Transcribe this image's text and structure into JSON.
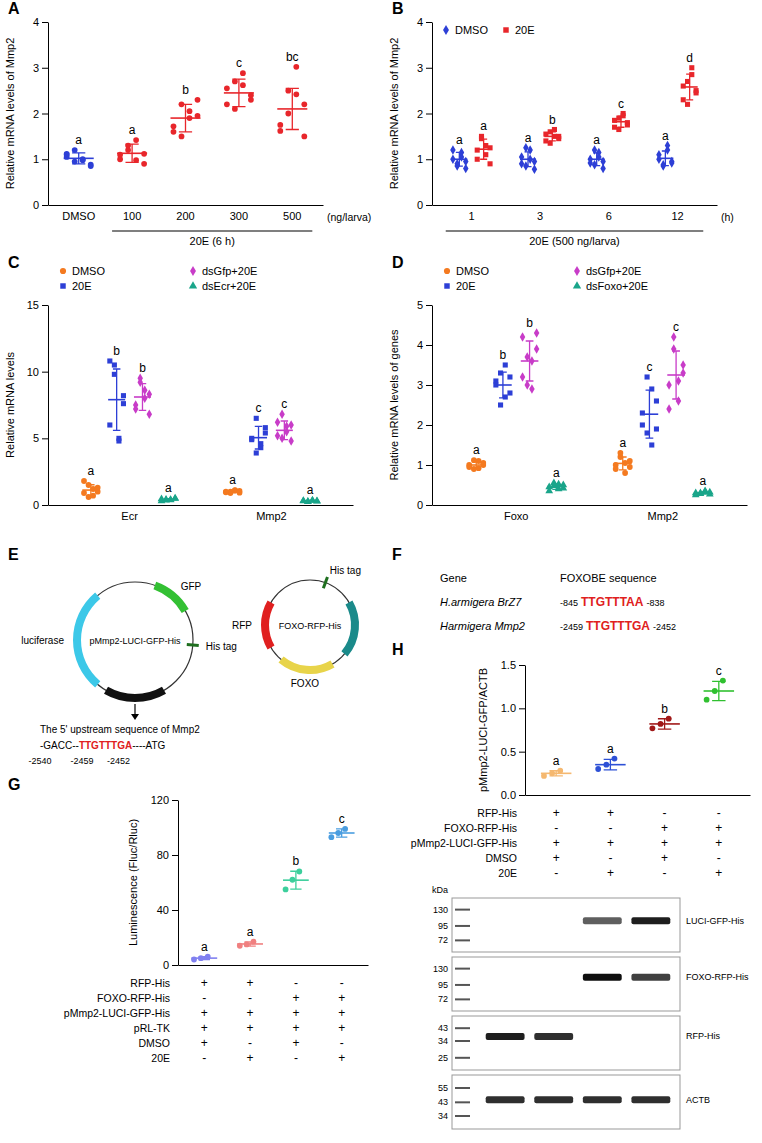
{
  "chart_data": [
    {
      "panel": "A",
      "type": "dot",
      "ylabel": "Relative mRNA levels of Mmp2",
      "xlabel": "(ng/larva)",
      "categories": [
        "DMSO",
        "100",
        "200",
        "300",
        "500"
      ],
      "bracket": {
        "label": "20E (6 h)",
        "from": "100",
        "to": "500"
      },
      "ylim": [
        0,
        4
      ],
      "yticks": [
        0,
        1,
        2,
        3,
        4
      ],
      "series": [
        {
          "colors": [
            "#2d3fd6",
            "#e8262b",
            "#e8262b",
            "#e8262b",
            "#e8262b"
          ],
          "marker": "circle",
          "points": [
            [
              1.1,
              0.95,
              1.0,
              0.88,
              1.05,
              1.2,
              0.98,
              0.85,
              1.12
            ],
            [
              1.0,
              1.3,
              1.42,
              0.9,
              1.1,
              1.2,
              0.98,
              1.12
            ],
            [
              1.6,
              2.2,
              1.9,
              2.3,
              1.72,
              1.5,
              2.05,
              1.95
            ],
            [
              2.2,
              2.7,
              2.88,
              2.4,
              2.55,
              2.1,
              2.62,
              2.3
            ],
            [
              1.62,
              2.5,
              3.02,
              2.2,
              1.75,
              2.0,
              2.42,
              1.5
            ]
          ],
          "means": [
            1.02,
            1.13,
            1.9,
            2.45,
            2.1
          ],
          "errors": [
            0.12,
            0.2,
            0.3,
            0.3,
            0.45
          ],
          "letters": [
            "a",
            "a",
            "b",
            "c",
            "bc"
          ]
        }
      ]
    },
    {
      "panel": "B",
      "type": "dot",
      "ylabel": "Relative mRNA levels of Mmp2",
      "xlabel": "(h)",
      "categories": [
        "1",
        "3",
        "6",
        "12"
      ],
      "bracket": {
        "label": "20E (500 ng/larva)",
        "from": "1",
        "to": "12"
      },
      "ylim": [
        0,
        4
      ],
      "yticks": [
        0,
        1,
        2,
        3,
        4
      ],
      "legend": "top-left",
      "series": [
        {
          "name": "DMSO",
          "color": "#2d3fd6",
          "marker": "diamond",
          "points": [
            [
              1.0,
              0.85,
              1.15,
              0.95,
              1.2,
              0.9,
              1.05,
              0.8
            ],
            [
              1.05,
              0.85,
              1.2,
              0.95,
              0.9,
              1.25,
              1.0,
              0.78
            ],
            [
              1.0,
              0.88,
              1.15,
              0.95,
              0.92,
              1.2,
              1.05,
              0.8
            ],
            [
              1.0,
              0.85,
              1.2,
              0.95,
              1.1,
              0.88,
              1.3,
              0.92
            ]
          ],
          "means": [
            1.0,
            1.0,
            1.0,
            1.02
          ],
          "errors": [
            0.15,
            0.16,
            0.14,
            0.16
          ],
          "letters": [
            "a",
            "a",
            "a",
            "a"
          ]
        },
        {
          "name": "20E",
          "color": "#e8262b",
          "marker": "square",
          "points": [
            [
              1.0,
              1.5,
              1.3,
              0.9,
              1.2,
              1.45,
              1.1,
              1.25
            ],
            [
              1.4,
              1.6,
              1.5,
              1.45,
              1.55,
              1.35,
              1.65,
              1.5
            ],
            [
              1.7,
              1.9,
              2.0,
              1.75,
              1.85,
              1.65,
              1.95,
              1.8
            ],
            [
              2.3,
              2.7,
              3.0,
              2.5,
              2.6,
              2.2,
              2.85,
              2.45
            ]
          ],
          "means": [
            1.22,
            1.5,
            1.82,
            2.58
          ],
          "errors": [
            0.22,
            0.1,
            0.12,
            0.28
          ],
          "letters": [
            "a",
            "b",
            "c",
            "d"
          ]
        }
      ]
    },
    {
      "panel": "C",
      "type": "dot",
      "ylabel": "Relative mRNA levels",
      "categories": [
        "Ecr",
        "Mmp2"
      ],
      "ylim": [
        0,
        15
      ],
      "yticks": [
        0,
        5,
        10,
        15
      ],
      "legend": "top",
      "series": [
        {
          "name": "DMSO",
          "color": "#f47a20",
          "marker": "circle",
          "points": [
            [
              1.8,
              0.6,
              1.2,
              1.0,
              0.9,
              1.5,
              0.7,
              1.3
            ],
            [
              1.0,
              0.9,
              1.1,
              1.05,
              0.95,
              1.0,
              1.12,
              0.92
            ]
          ],
          "means": [
            1.12,
            1.0
          ],
          "errors": [
            0.4,
            0.08
          ],
          "letters": [
            "a",
            "a"
          ]
        },
        {
          "name": "20E",
          "color": "#2d3fd6",
          "marker": "square",
          "points": [
            [
              10.8,
              10.5,
              5.0,
              8.2,
              6.0,
              9.8,
              4.8,
              7.6
            ],
            [
              5.0,
              6.5,
              4.3,
              5.8,
              4.9,
              3.9,
              4.6,
              5.4
            ]
          ],
          "means": [
            7.9,
            5.05
          ],
          "errors": [
            2.3,
            0.85
          ],
          "letters": [
            "b",
            "c"
          ]
        },
        {
          "name": "dsGfp+20E",
          "color": "#c83cc8",
          "marker": "diamond",
          "points": [
            [
              7.5,
              9.5,
              8.6,
              6.8,
              7.2,
              9.2,
              8.0,
              8.3
            ],
            [
              5.2,
              6.8,
              5.5,
              4.8,
              6.2,
              5.0,
              5.9,
              6.0
            ]
          ],
          "means": [
            8.1,
            5.6
          ],
          "errors": [
            1.0,
            0.7
          ],
          "letters": [
            "b",
            "c"
          ]
        },
        {
          "name": "dsEcr+20E",
          "color": "#1aa58a",
          "marker": "triangle",
          "points": [
            [
              0.45,
              0.35,
              0.4,
              0.5,
              0.3,
              0.42,
              0.38,
              0.48
            ],
            [
              0.3,
              0.25,
              0.35,
              0.28,
              0.32,
              0.27,
              0.33,
              0.3
            ]
          ],
          "means": [
            0.41,
            0.3
          ],
          "errors": [
            0.07,
            0.04
          ],
          "letters": [
            "a",
            "a"
          ]
        }
      ]
    },
    {
      "panel": "D",
      "type": "dot",
      "ylabel": "Relative mRNA levels of genes",
      "categories": [
        "Foxo",
        "Mmp2"
      ],
      "ylim": [
        0,
        5
      ],
      "yticks": [
        0,
        1,
        2,
        3,
        4,
        5
      ],
      "legend": "top",
      "series": [
        {
          "name": "DMSO",
          "color": "#f47a20",
          "marker": "circle",
          "points": [
            [
              1.0,
              0.9,
              1.1,
              1.05,
              0.95,
              1.12,
              0.92,
              1.0
            ],
            [
              1.0,
              1.3,
              0.8,
              1.1,
              0.9,
              1.2,
              1.05,
              0.95
            ]
          ],
          "means": [
            1.0,
            1.04
          ],
          "errors": [
            0.08,
            0.16
          ],
          "letters": [
            "a",
            "a"
          ]
        },
        {
          "name": "20E",
          "color": "#2d3fd6",
          "marker": "square",
          "points": [
            [
              3.1,
              2.5,
              3.5,
              2.8,
              3.0,
              3.3,
              2.7,
              3.2
            ],
            [
              2.3,
              3.2,
              1.5,
              2.6,
              2.0,
              1.8,
              2.9,
              1.9
            ]
          ],
          "means": [
            3.0,
            2.27
          ],
          "errors": [
            0.32,
            0.6
          ],
          "letters": [
            "b",
            "c"
          ]
        },
        {
          "name": "dsGfp+20E",
          "color": "#c83cc8",
          "marker": "diamond",
          "points": [
            [
              4.2,
              3.0,
              3.6,
              4.3,
              3.2,
              3.7,
              2.9,
              3.9
            ],
            [
              3.0,
              4.2,
              2.6,
              3.5,
              2.4,
              3.9,
              3.1,
              3.3
            ]
          ],
          "means": [
            3.6,
            3.25
          ],
          "errors": [
            0.5,
            0.6
          ],
          "letters": [
            "b",
            "c"
          ]
        },
        {
          "name": "dsFoxo+20E",
          "color": "#1aa58a",
          "marker": "triangle",
          "points": [
            [
              0.45,
              0.55,
              0.4,
              0.5,
              0.35,
              0.48,
              0.52,
              0.42
            ],
            [
              0.3,
              0.28,
              0.35,
              0.32,
              0.25,
              0.3,
              0.33,
              0.27
            ]
          ],
          "means": [
            0.46,
            0.3
          ],
          "errors": [
            0.07,
            0.03
          ],
          "letters": [
            "a",
            "a"
          ]
        }
      ]
    },
    {
      "panel": "G",
      "type": "dot",
      "ylabel": "Luminescence (Fluc/Rluc)",
      "categories": [
        null,
        null,
        null,
        null
      ],
      "ylim": [
        0,
        120
      ],
      "yticks": [
        0,
        40,
        80,
        120
      ],
      "series": [
        {
          "colors": [
            "#8080f0",
            "#f08080",
            "#3ccf9c",
            "#4a9de0"
          ],
          "marker": "circle",
          "points": [
            [
              4,
              5,
              6
            ],
            [
              14,
              15,
              17
            ],
            [
              55,
              62,
              68
            ],
            [
              93,
              96,
              99
            ]
          ],
          "means": [
            5,
            15.3,
            61.7,
            96
          ],
          "errors": [
            1,
            1.5,
            6.5,
            3
          ],
          "letters": [
            "a",
            "a",
            "b",
            "c"
          ]
        }
      ],
      "conditions": [
        {
          "label": "RFP-His",
          "marks": [
            "+",
            "+",
            "-",
            "-"
          ]
        },
        {
          "label": "FOXO-RFP-His",
          "marks": [
            "-",
            "-",
            "+",
            "+"
          ]
        },
        {
          "label": "pMmp2-LUCI-GFP-His",
          "marks": [
            "+",
            "+",
            "+",
            "+"
          ]
        },
        {
          "label": "pRL-TK",
          "marks": [
            "+",
            "+",
            "+",
            "+"
          ]
        },
        {
          "label": "DMSO",
          "marks": [
            "+",
            "-",
            "+",
            "-"
          ]
        },
        {
          "label": "20E",
          "marks": [
            "-",
            "+",
            "-",
            "+"
          ]
        }
      ]
    },
    {
      "panel": "H",
      "type": "dot",
      "ylabel": "pMmp2-LUCI-GFP/ACTB",
      "categories": [
        null,
        null,
        null,
        null
      ],
      "ylim": [
        0,
        1.5
      ],
      "yticks": [
        {
          "value": 0,
          "label": "0.0"
        },
        0.5,
        {
          "value": 1,
          "label": "1.0"
        },
        1.5
      ],
      "series": [
        {
          "colors": [
            "#f5b870",
            "#2d50d6",
            "#a01818",
            "#30c030"
          ],
          "marker": "circle",
          "points": [
            [
              0.22,
              0.25,
              0.28
            ],
            [
              0.3,
              0.35,
              0.42
            ],
            [
              0.77,
              0.82,
              0.88
            ],
            [
              1.1,
              1.2,
              1.32
            ]
          ],
          "means": [
            0.25,
            0.35,
            0.82,
            1.2
          ],
          "errors": [
            0.03,
            0.06,
            0.06,
            0.11
          ],
          "letters": [
            "a",
            "a",
            "b",
            "c"
          ]
        }
      ],
      "conditions": [
        {
          "label": "RFP-His",
          "marks": [
            "+",
            "+",
            "-",
            "-"
          ]
        },
        {
          "label": "FOXO-RFP-His",
          "marks": [
            "-",
            "-",
            "+",
            "+"
          ]
        },
        {
          "label": "pMmp2-LUCI-GFP-His",
          "marks": [
            "+",
            "+",
            "+",
            "+"
          ]
        },
        {
          "label": "DMSO",
          "marks": [
            "+",
            "-",
            "+",
            "-"
          ]
        },
        {
          "label": "20E",
          "marks": [
            "-",
            "+",
            "-",
            "+"
          ]
        }
      ]
    }
  ],
  "blot": {
    "unit": "kDa",
    "strips": [
      {
        "label": "LUCI-GFP-His",
        "ladder": [
          130,
          95,
          72
        ],
        "band_kda": 105,
        "bands": [
          0,
          0,
          0.7,
          0.9
        ]
      },
      {
        "label": "FOXO-RFP-His",
        "ladder": [
          130,
          95,
          72
        ],
        "band_kda": 110,
        "bands": [
          0,
          0,
          0.95,
          0.8
        ]
      },
      {
        "label": "RFP-His",
        "ladder": [
          43,
          34,
          25
        ],
        "band_kda": 37,
        "bands": [
          0.9,
          0.85,
          0,
          0
        ]
      },
      {
        "label": "ACTB",
        "ladder": [
          55,
          43,
          34
        ],
        "band_kda": 45,
        "bands": [
          0.85,
          0.85,
          0.85,
          0.85
        ]
      }
    ]
  },
  "diagram": {
    "panel": "E",
    "plasmids": [
      {
        "name": "pMmp2-LUCI-GFP-His",
        "features": [
          {
            "label": "GFP",
            "color": "#33c033"
          },
          {
            "label": "His tag",
            "color": "#1f6f1f"
          },
          {
            "label": "luciferase",
            "color": "#3cc8e8"
          },
          {
            "color": "#111111"
          }
        ]
      },
      {
        "name": "FOXO-RFP-His",
        "features": [
          {
            "label": "His tag",
            "color": "#1f6f1f"
          },
          {
            "label": "RFP",
            "color": "#e02020"
          },
          {
            "color": "#1a8a8a"
          },
          {
            "label": "FOXO",
            "color": "#e8d44a"
          }
        ]
      }
    ],
    "promoter": {
      "caption": "The 5' upstream sequence of Mmp2",
      "segments": [
        {
          "text": "-GACC--",
          "color": "#000000",
          "label": "-2540"
        },
        {
          "text": "TTGTTTGA",
          "color": "#e02020",
          "label": "-2459",
          "end_label": "-2452"
        },
        {
          "text": "----ATG",
          "color": "#000000"
        }
      ]
    }
  },
  "table": {
    "panel": "F",
    "columns": [
      "Gene",
      "FOXOBE sequence"
    ],
    "rows": [
      {
        "gene": "H.armigera BrZ7",
        "start": "-845",
        "site": "TTGTTTAA",
        "end": "-838"
      },
      {
        "gene": "Harmigera Mmp2",
        "start": "-2459",
        "site": "TTGTTTGA",
        "end": "-2452"
      }
    ]
  }
}
